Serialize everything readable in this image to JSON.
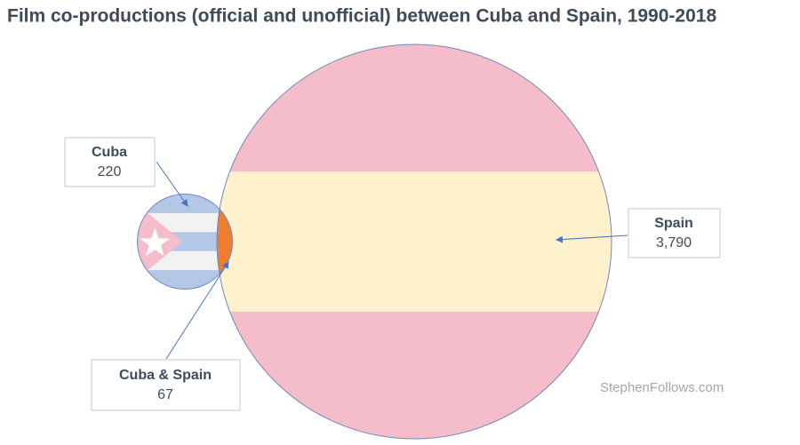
{
  "chart_data": {
    "type": "venn",
    "title": "Film co-productions (official and unofficial) between Cuba and Spain, 1990-2018",
    "categories": [
      "Cuba",
      "Spain",
      "Cuba & Spain"
    ],
    "values": [
      220,
      3790,
      67
    ],
    "value_labels": [
      "220",
      "3,790",
      "67"
    ],
    "source": "StephenFollows.com"
  }
}
